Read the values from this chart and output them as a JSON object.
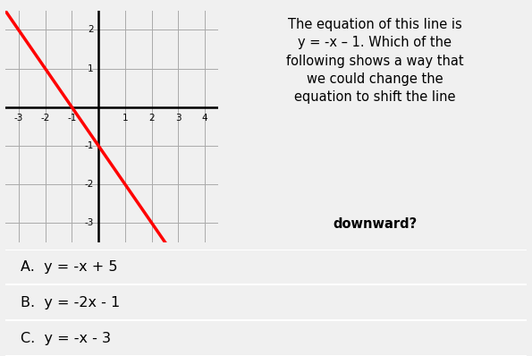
{
  "bg_color": "#f0f0f0",
  "top_panel_bg": "#f0f0f0",
  "answer_bg": "#dcdcdc",
  "title_lines": [
    "The equation of this line is",
    "y = -x – 1. Which of the",
    "following shows a way that",
    "we could change the",
    "equation to shift the line",
    "downward?"
  ],
  "title_bold_word": "downward",
  "answers": [
    "A.  y = -x + 5",
    "B.  y = -2x - 1",
    "C.  y = -x - 3"
  ],
  "graph_xlim": [
    -3.5,
    4.5
  ],
  "graph_ylim": [
    -3.5,
    2.5
  ],
  "x_ticks": [
    -3,
    -2,
    -1,
    1,
    2,
    3,
    4
  ],
  "y_ticks": [
    -3,
    -2,
    -1,
    1,
    2
  ],
  "line_color": "#ff0000",
  "line_slope": -1,
  "line_intercept": -1,
  "axis_color": "#000000",
  "grid_color": "#aaaaaa"
}
